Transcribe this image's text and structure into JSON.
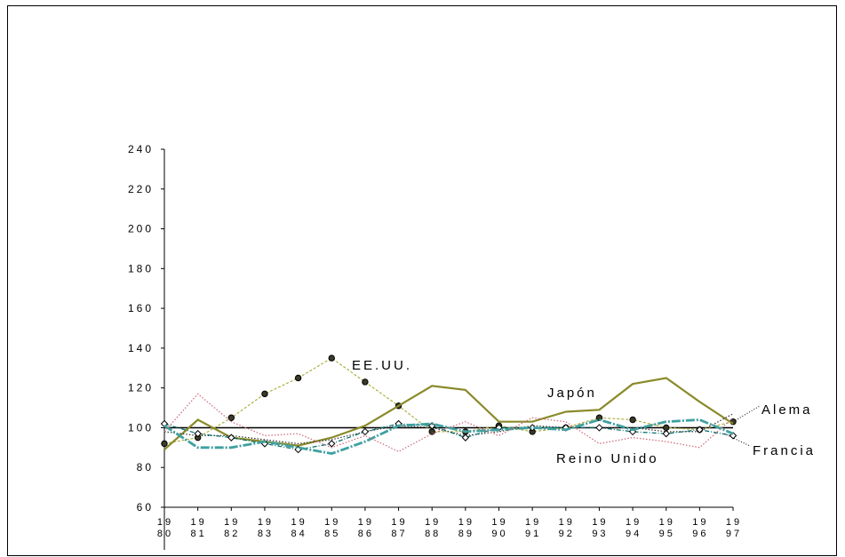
{
  "chart_data": {
    "type": "line",
    "ylim": [
      60,
      240
    ],
    "yticks": [
      "60",
      "80",
      "100",
      "120",
      "140",
      "160",
      "180",
      "200",
      "220",
      "240"
    ],
    "categories": [
      "1980",
      "1981",
      "1982",
      "1983",
      "1984",
      "1985",
      "1986",
      "1987",
      "1988",
      "1989",
      "1990",
      "1991",
      "1992",
      "1993",
      "1994",
      "1995",
      "1996",
      "1997"
    ],
    "x_tick_labels": [
      [
        "19",
        "80"
      ],
      [
        "19",
        "81"
      ],
      [
        "19",
        "82"
      ],
      [
        "19",
        "83"
      ],
      [
        "19",
        "84"
      ],
      [
        "19",
        "85"
      ],
      [
        "19",
        "86"
      ],
      [
        "19",
        "87"
      ],
      [
        "19",
        "88"
      ],
      [
        "19",
        "89"
      ],
      [
        "19",
        "90"
      ],
      [
        "19",
        "91"
      ],
      [
        "19",
        "92"
      ],
      [
        "19",
        "93"
      ],
      [
        "19",
        "94"
      ],
      [
        "19",
        "95"
      ],
      [
        "19",
        "96"
      ],
      [
        "19",
        "97"
      ]
    ],
    "reference_value": 100,
    "grid": false,
    "series": [
      {
        "name": "EE.UU.",
        "color": "#b0b040",
        "style": "dashed-dotted-markers",
        "values": [
          92,
          95,
          105,
          117,
          125,
          135,
          123,
          111,
          98,
          98,
          101,
          98,
          100,
          105,
          104,
          100,
          99,
          103
        ]
      },
      {
        "name": "Japón",
        "color": "#8a8a2a",
        "style": "solid",
        "values": [
          89,
          104,
          95,
          93,
          91,
          95,
          101,
          111,
          121,
          119,
          103,
          103,
          108,
          109,
          122,
          125,
          113,
          102
        ]
      },
      {
        "name": "Alema",
        "color": "#333333",
        "style": "dotted",
        "values": [
          98,
          96,
          96,
          94,
          92,
          94,
          98,
          101,
          100,
          96,
          98,
          101,
          100,
          100,
          100,
          98,
          98,
          107
        ]
      },
      {
        "name": "Francia",
        "color": "#006a6a",
        "style": "dash-dot-diamonds",
        "values": [
          102,
          97,
          95,
          92,
          89,
          92,
          98,
          102,
          101,
          95,
          100,
          100,
          100,
          100,
          98,
          97,
          99,
          96
        ]
      },
      {
        "name": "Reino Unido",
        "color": "#40a0a0",
        "style": "thick",
        "values": [
          101,
          90,
          90,
          93,
          90,
          87,
          93,
          101,
          102,
          98,
          99,
          100,
          99,
          104,
          99,
          103,
          104,
          97
        ]
      },
      {
        "name": "",
        "color": "#cc6677",
        "style": "dotted",
        "values": [
          98,
          117,
          103,
          96,
          97,
          90,
          96,
          88,
          97,
          103,
          96,
          105,
          103,
          92,
          95,
          93,
          90,
          105
        ]
      }
    ],
    "labels": {
      "eeuu": "EE.UU.",
      "japon": "Japón",
      "alemania": "Alema",
      "francia": "Francia",
      "reino": "Reino Unido"
    }
  }
}
